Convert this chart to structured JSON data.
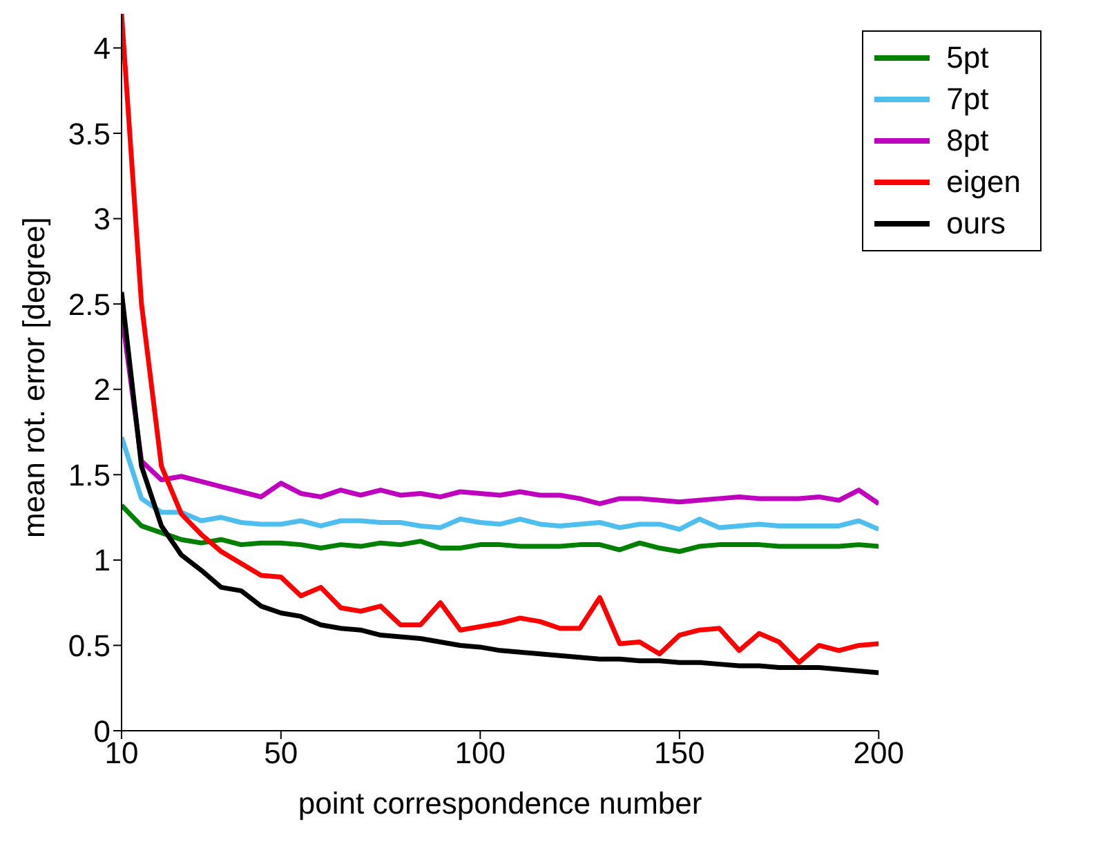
{
  "chart_data": {
    "type": "line",
    "xlabel": "point correspondence number",
    "ylabel": "mean rot. error [degree]",
    "x": [
      10,
      15,
      20,
      25,
      30,
      35,
      40,
      45,
      50,
      55,
      60,
      65,
      70,
      75,
      80,
      85,
      90,
      95,
      100,
      105,
      110,
      115,
      120,
      125,
      130,
      135,
      140,
      145,
      150,
      155,
      160,
      165,
      170,
      175,
      180,
      185,
      190,
      195,
      200
    ],
    "series": [
      {
        "name": "5pt",
        "color": "#008000",
        "values": [
          1.32,
          1.2,
          1.16,
          1.12,
          1.1,
          1.12,
          1.09,
          1.1,
          1.1,
          1.09,
          1.07,
          1.09,
          1.08,
          1.1,
          1.09,
          1.11,
          1.07,
          1.07,
          1.09,
          1.09,
          1.08,
          1.08,
          1.08,
          1.09,
          1.09,
          1.06,
          1.1,
          1.07,
          1.05,
          1.08,
          1.09,
          1.09,
          1.09,
          1.08,
          1.08,
          1.08,
          1.08,
          1.09,
          1.08
        ]
      },
      {
        "name": "7pt",
        "color": "#4dbeee",
        "values": [
          1.72,
          1.36,
          1.28,
          1.28,
          1.23,
          1.25,
          1.22,
          1.21,
          1.21,
          1.23,
          1.2,
          1.23,
          1.23,
          1.22,
          1.22,
          1.2,
          1.19,
          1.24,
          1.22,
          1.21,
          1.24,
          1.21,
          1.2,
          1.21,
          1.22,
          1.19,
          1.21,
          1.21,
          1.18,
          1.24,
          1.19,
          1.2,
          1.21,
          1.2,
          1.2,
          1.2,
          1.2,
          1.23,
          1.18
        ]
      },
      {
        "name": "8pt",
        "color": "#bf00bf",
        "values": [
          2.45,
          1.58,
          1.47,
          1.49,
          1.46,
          1.43,
          1.4,
          1.37,
          1.45,
          1.39,
          1.37,
          1.41,
          1.38,
          1.41,
          1.38,
          1.39,
          1.37,
          1.4,
          1.39,
          1.38,
          1.4,
          1.38,
          1.38,
          1.36,
          1.33,
          1.36,
          1.36,
          1.35,
          1.34,
          1.35,
          1.36,
          1.37,
          1.36,
          1.36,
          1.36,
          1.37,
          1.35,
          1.41,
          1.33
        ]
      },
      {
        "name": "eigen",
        "color": "#ff0000",
        "values": [
          4.2,
          2.5,
          1.55,
          1.27,
          1.15,
          1.05,
          0.98,
          0.91,
          0.9,
          0.79,
          0.84,
          0.72,
          0.7,
          0.73,
          0.62,
          0.62,
          0.75,
          0.59,
          0.61,
          0.63,
          0.66,
          0.64,
          0.6,
          0.6,
          0.78,
          0.51,
          0.52,
          0.45,
          0.56,
          0.59,
          0.6,
          0.47,
          0.57,
          0.52,
          0.4,
          0.5,
          0.47,
          0.5,
          0.51
        ]
      },
      {
        "name": "ours",
        "color": "#000000",
        "values": [
          2.57,
          1.55,
          1.2,
          1.03,
          0.94,
          0.84,
          0.82,
          0.73,
          0.69,
          0.67,
          0.62,
          0.6,
          0.59,
          0.56,
          0.55,
          0.54,
          0.52,
          0.5,
          0.49,
          0.47,
          0.46,
          0.45,
          0.44,
          0.43,
          0.42,
          0.42,
          0.41,
          0.41,
          0.4,
          0.4,
          0.39,
          0.38,
          0.38,
          0.37,
          0.37,
          0.37,
          0.36,
          0.35,
          0.34
        ]
      }
    ],
    "xlim": [
      10,
      200
    ],
    "xticks": [
      10,
      50,
      100,
      150,
      200
    ],
    "ylim": [
      0,
      4.2
    ],
    "yticks": [
      0,
      0.5,
      1,
      1.5,
      2,
      2.5,
      3,
      3.5,
      4
    ],
    "grid": false,
    "legend": "top right",
    "marker": "none",
    "line_style": "solid"
  }
}
